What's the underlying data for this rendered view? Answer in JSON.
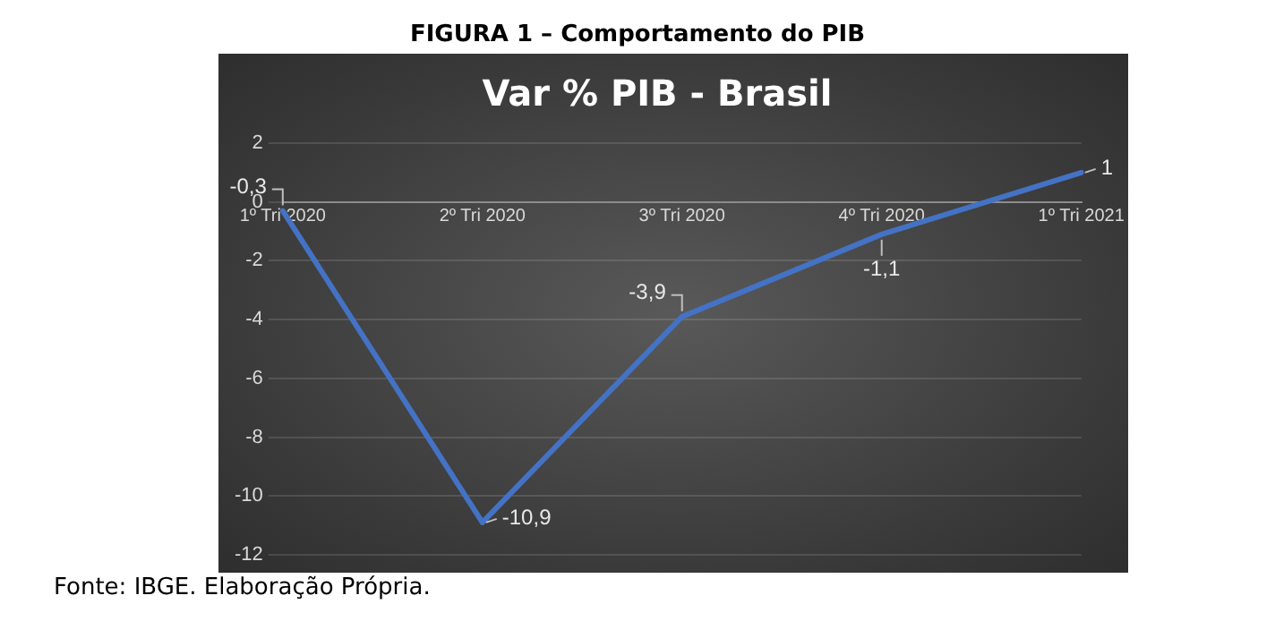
{
  "chart_data": {
    "type": "line",
    "title": "FIGURA 1 – Comportamento do PIB",
    "subtitle": "Var % PIB - Brasil",
    "categories": [
      "1º Tri 2020",
      "2º Tri 2020",
      "3º Tri 2020",
      "4º Tri 2020",
      "1º Tri 2021"
    ],
    "series": [
      {
        "color": "#4472c4",
        "values": [
          -0.3,
          -10.9,
          -3.9,
          -1.1,
          1
        ],
        "value_labels": [
          "-0,3",
          "-10,9",
          "-3,9",
          "-1,1",
          "1"
        ]
      }
    ],
    "ylim": [
      -12,
      2
    ],
    "yticks": [
      -12,
      -10,
      -8,
      -6,
      -4,
      -2,
      0,
      2
    ],
    "legend": false,
    "grid": "y",
    "line_style": "solid",
    "annotations": [
      "Fonte: IBGE. Elaboração Própria."
    ]
  }
}
